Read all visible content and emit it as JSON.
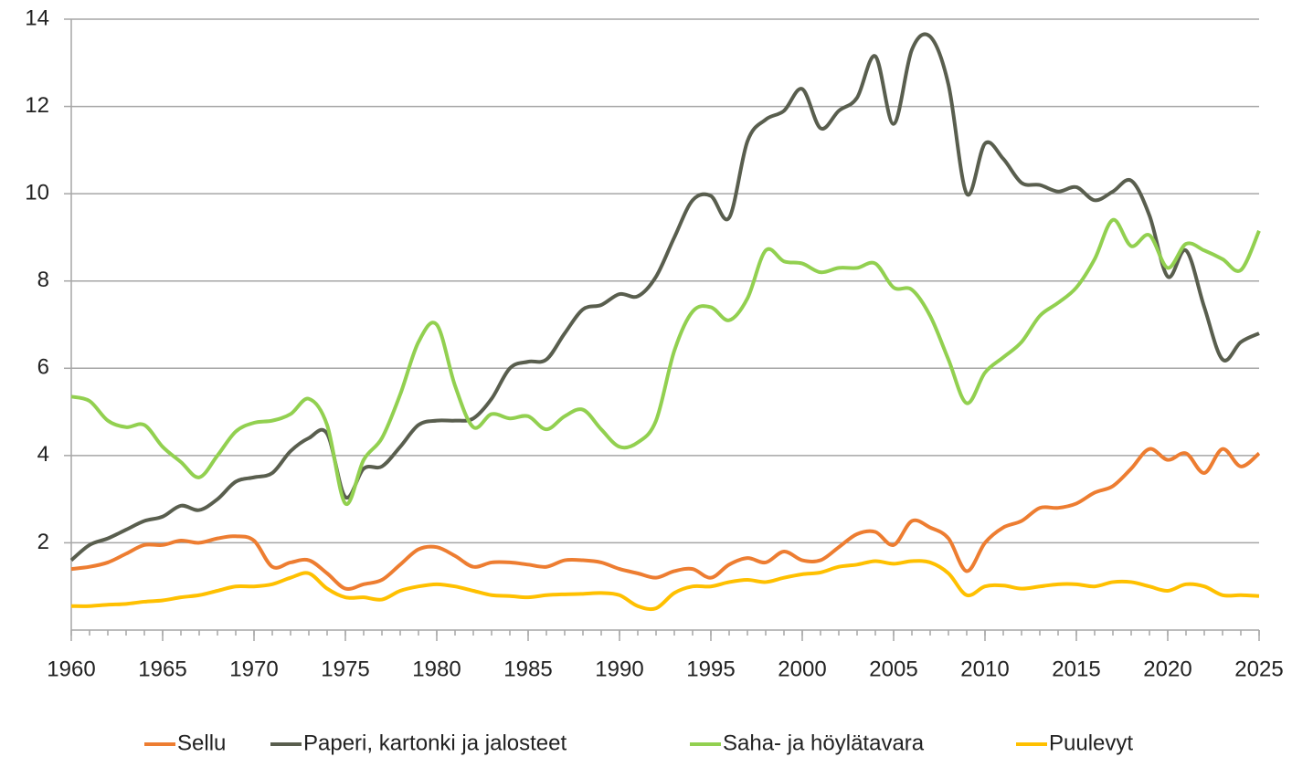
{
  "chart_data": {
    "type": "line",
    "x": [
      1960,
      1961,
      1962,
      1963,
      1964,
      1965,
      1966,
      1967,
      1968,
      1969,
      1970,
      1971,
      1972,
      1973,
      1974,
      1975,
      1976,
      1977,
      1978,
      1979,
      1980,
      1981,
      1982,
      1983,
      1984,
      1985,
      1986,
      1987,
      1988,
      1989,
      1990,
      1991,
      1992,
      1993,
      1994,
      1995,
      1996,
      1997,
      1998,
      1999,
      2000,
      2001,
      2002,
      2003,
      2004,
      2005,
      2006,
      2007,
      2008,
      2009,
      2010,
      2011,
      2012,
      2013,
      2014,
      2015,
      2016,
      2017,
      2018,
      2019,
      2020,
      2021,
      2022,
      2023,
      2024,
      2025
    ],
    "series": [
      {
        "name": "Sellu",
        "color": "#ED7D31",
        "values": [
          1.4,
          1.45,
          1.55,
          1.75,
          1.95,
          1.95,
          2.05,
          2.0,
          2.1,
          2.15,
          2.05,
          1.45,
          1.55,
          1.6,
          1.3,
          0.95,
          1.05,
          1.15,
          1.5,
          1.85,
          1.9,
          1.7,
          1.45,
          1.55,
          1.55,
          1.5,
          1.45,
          1.6,
          1.6,
          1.55,
          1.4,
          1.3,
          1.2,
          1.35,
          1.4,
          1.2,
          1.5,
          1.65,
          1.55,
          1.8,
          1.6,
          1.6,
          1.9,
          2.2,
          2.25,
          1.95,
          2.5,
          2.35,
          2.1,
          1.35,
          2.0,
          2.35,
          2.5,
          2.8,
          2.8,
          2.9,
          3.15,
          3.3,
          3.7,
          4.15,
          3.9,
          4.05,
          3.6,
          4.15,
          3.75,
          4.05
        ]
      },
      {
        "name": "Paperi, kartonki ja jalosteet",
        "color": "#595E4E",
        "values": [
          1.6,
          1.95,
          2.1,
          2.3,
          2.5,
          2.6,
          2.85,
          2.75,
          3.0,
          3.4,
          3.5,
          3.6,
          4.1,
          4.4,
          4.5,
          3.05,
          3.7,
          3.75,
          4.2,
          4.7,
          4.8,
          4.8,
          4.85,
          5.3,
          6.0,
          6.15,
          6.2,
          6.8,
          7.35,
          7.45,
          7.7,
          7.65,
          8.1,
          9.0,
          9.85,
          9.95,
          9.45,
          11.2,
          11.7,
          11.9,
          12.4,
          11.5,
          11.9,
          12.2,
          13.15,
          11.6,
          13.3,
          13.6,
          12.5,
          10.0,
          11.15,
          10.8,
          10.25,
          10.2,
          10.05,
          10.15,
          9.85,
          10.05,
          10.3,
          9.5,
          8.1,
          8.7,
          7.4,
          6.2,
          6.6,
          6.8
        ]
      },
      {
        "name": "Saha- ja höylätavara",
        "color": "#92D050",
        "values": [
          5.35,
          5.25,
          4.8,
          4.65,
          4.7,
          4.2,
          3.85,
          3.5,
          4.0,
          4.55,
          4.75,
          4.8,
          4.95,
          5.3,
          4.7,
          2.9,
          3.9,
          4.4,
          5.4,
          6.6,
          7.0,
          5.6,
          4.65,
          4.95,
          4.85,
          4.9,
          4.6,
          4.9,
          5.05,
          4.6,
          4.2,
          4.3,
          4.8,
          6.4,
          7.3,
          7.4,
          7.1,
          7.6,
          8.7,
          8.45,
          8.4,
          8.2,
          8.3,
          8.3,
          8.4,
          7.85,
          7.8,
          7.2,
          6.2,
          5.2,
          5.9,
          6.25,
          6.6,
          7.2,
          7.5,
          7.85,
          8.5,
          9.4,
          8.8,
          9.05,
          8.3,
          8.85,
          8.7,
          8.5,
          8.25,
          9.15
        ]
      },
      {
        "name": "Puulevyt",
        "color": "#FFC000",
        "values": [
          0.55,
          0.55,
          0.58,
          0.6,
          0.65,
          0.68,
          0.75,
          0.8,
          0.9,
          1.0,
          1.0,
          1.05,
          1.2,
          1.3,
          0.95,
          0.75,
          0.75,
          0.7,
          0.9,
          1.0,
          1.05,
          1.0,
          0.9,
          0.8,
          0.78,
          0.75,
          0.8,
          0.82,
          0.83,
          0.85,
          0.8,
          0.55,
          0.5,
          0.85,
          1.0,
          1.0,
          1.1,
          1.15,
          1.1,
          1.2,
          1.28,
          1.32,
          1.45,
          1.5,
          1.58,
          1.52,
          1.58,
          1.55,
          1.3,
          0.8,
          1.0,
          1.02,
          0.95,
          1.0,
          1.05,
          1.05,
          1.0,
          1.1,
          1.1,
          1.0,
          0.9,
          1.05,
          1.0,
          0.8,
          0.8,
          0.78
        ]
      }
    ],
    "xlim": [
      1960,
      2025
    ],
    "xticks": [
      1960,
      1965,
      1970,
      1975,
      1980,
      1985,
      1990,
      1995,
      2000,
      2005,
      2010,
      2015,
      2020,
      2025
    ],
    "ylim": [
      0,
      14
    ],
    "yticks": [
      2,
      4,
      6,
      8,
      10,
      12,
      14
    ],
    "grid": true,
    "legend": "bottom"
  }
}
